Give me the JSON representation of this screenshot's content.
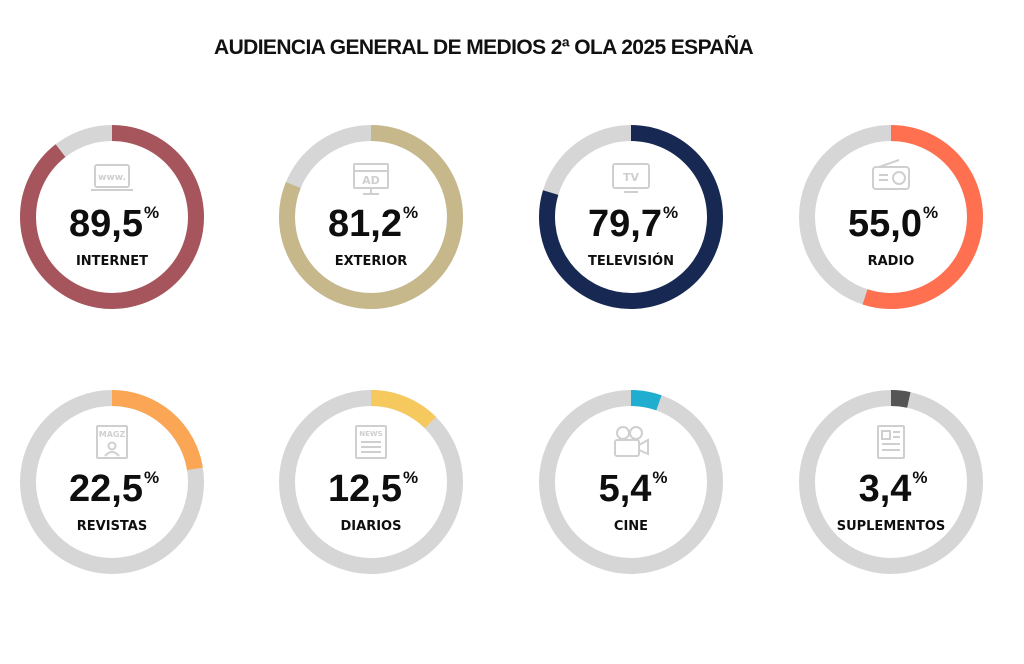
{
  "title": "AUDIENCIA GENERAL DE MEDIOS 2ª OLA 2025 ESPAÑA",
  "chart_data": {
    "type": "donut",
    "title": "AUDIENCIA GENERAL DE MEDIOS 2ª OLA 2025 ESPAÑA",
    "unit": "%",
    "max": 100,
    "track_color": "#d6d6d6",
    "items": [
      {
        "label": "INTERNET",
        "value": 89.5,
        "display": "89,5",
        "unit": "%",
        "color": "#a6555c",
        "icon": "browser-www-icon"
      },
      {
        "label": "EXTERIOR",
        "value": 81.2,
        "display": "81,2",
        "unit": "%",
        "color": "#c7b88c",
        "icon": "billboard-ad-icon"
      },
      {
        "label": "TELEVISIÓN",
        "value": 79.7,
        "display": "79,7",
        "unit": "%",
        "color": "#172852",
        "icon": "tv-icon"
      },
      {
        "label": "RADIO",
        "value": 55.0,
        "display": "55,0",
        "unit": "%",
        "color": "#ff7050",
        "icon": "radio-icon"
      },
      {
        "label": "REVISTAS",
        "value": 22.5,
        "display": "22,5",
        "unit": "%",
        "color": "#fba655",
        "icon": "magazine-icon"
      },
      {
        "label": "DIARIOS",
        "value": 12.5,
        "display": "12,5",
        "unit": "%",
        "color": "#f6c95f",
        "icon": "newspaper-icon"
      },
      {
        "label": "CINE",
        "value": 5.4,
        "display": "5,4",
        "unit": "%",
        "color": "#1faecf",
        "icon": "movie-camera-icon"
      },
      {
        "label": "SUPLEMENTOS",
        "value": 3.4,
        "display": "3,4",
        "unit": "%",
        "color": "#555555",
        "icon": "supplement-icon"
      }
    ]
  }
}
